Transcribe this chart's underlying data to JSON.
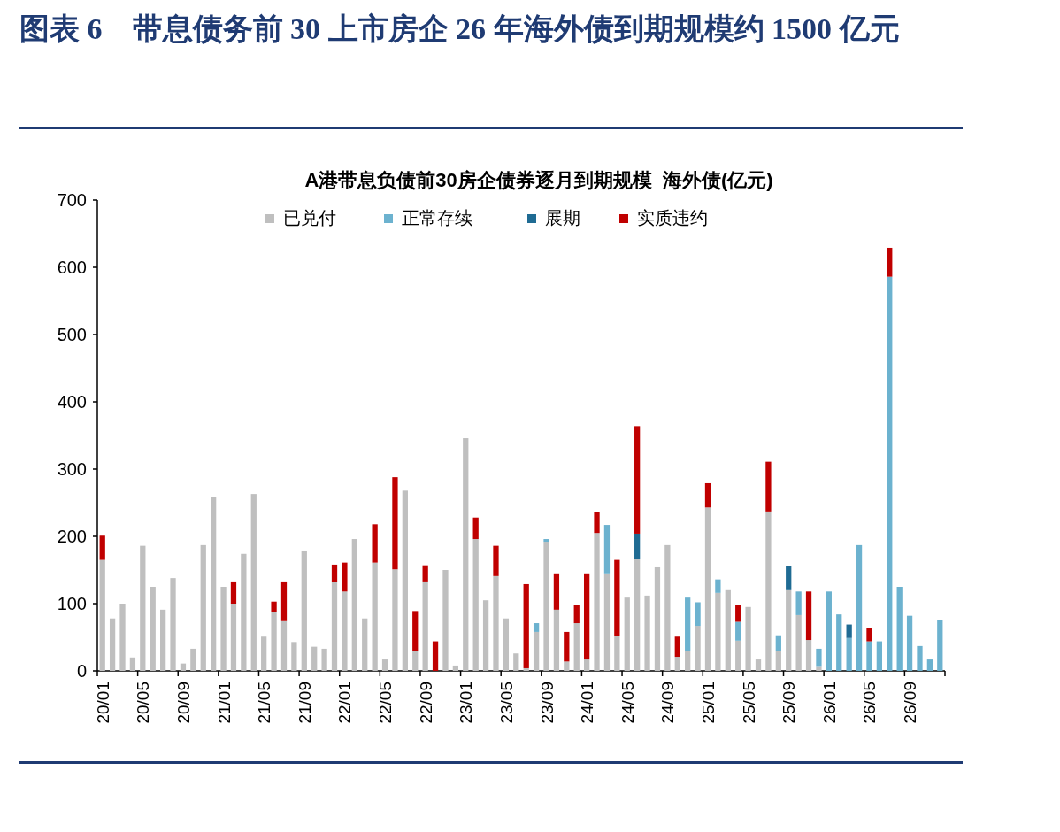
{
  "chart_data": {
    "type": "bar",
    "stacked": true,
    "title": "图表 6　带息债务前 30 上市房企 26 年海外债到期规模约 1500 亿元",
    "subtitle": "A港带息负债前30房企债券逐月到期规模_海外债(亿元)",
    "categories": [
      "20/01",
      null,
      null,
      null,
      "20/05",
      null,
      null,
      null,
      "20/09",
      null,
      null,
      null,
      "21/01",
      null,
      null,
      null,
      "21/05",
      null,
      null,
      null,
      "21/09",
      null,
      null,
      null,
      "22/01",
      null,
      null,
      null,
      "22/05",
      null,
      null,
      null,
      "22/09",
      null,
      null,
      null,
      "23/01",
      null,
      null,
      null,
      "23/05",
      null,
      null,
      null,
      "23/09",
      null,
      null,
      null,
      "24/01",
      null,
      null,
      null,
      "24/05",
      null,
      null,
      null,
      "24/09",
      null,
      null,
      null,
      "25/01",
      null,
      null,
      null,
      "25/05",
      null,
      null,
      null,
      "25/09",
      null,
      null,
      null,
      "26/01",
      null,
      null,
      null,
      "26/05",
      null,
      null,
      null,
      "26/09",
      null,
      null,
      null
    ],
    "series": [
      {
        "name": "已兑付",
        "color": "#bfbfbf",
        "values": [
          165,
          78,
          100,
          20,
          186,
          125,
          91,
          138,
          11,
          33,
          187,
          259,
          125,
          100,
          174,
          263,
          51,
          88,
          74,
          43,
          179,
          36,
          33,
          132,
          118,
          196,
          78,
          161,
          17,
          151,
          268,
          29,
          133,
          null,
          150,
          8,
          346,
          196,
          105,
          141,
          78,
          26,
          4,
          58,
          192,
          91,
          14,
          71,
          17,
          205,
          145,
          52,
          109,
          167,
          112,
          154,
          187,
          21,
          29,
          67,
          243,
          116,
          120,
          45,
          95,
          17,
          237,
          30,
          120,
          83,
          46,
          6,
          null,
          null,
          null,
          null,
          null,
          null,
          null,
          null,
          null,
          null,
          null,
          null
        ]
      },
      {
        "name": "正常存续",
        "color": "#6cb2cf",
        "values": [
          null,
          null,
          null,
          null,
          null,
          null,
          null,
          null,
          null,
          null,
          null,
          null,
          null,
          null,
          null,
          null,
          null,
          null,
          null,
          null,
          null,
          null,
          null,
          null,
          null,
          null,
          null,
          null,
          null,
          null,
          null,
          null,
          null,
          null,
          null,
          null,
          null,
          null,
          null,
          null,
          null,
          null,
          null,
          13,
          4,
          null,
          null,
          null,
          null,
          null,
          72,
          null,
          null,
          null,
          null,
          null,
          null,
          null,
          80,
          35,
          null,
          20,
          null,
          28,
          null,
          null,
          null,
          23,
          null,
          35,
          null,
          27,
          118,
          84,
          49,
          187,
          44,
          44,
          586,
          125,
          82,
          37,
          17,
          75
        ]
      },
      {
        "name": "展期",
        "color": "#1f6b93",
        "values": [
          null,
          null,
          null,
          null,
          null,
          null,
          null,
          null,
          null,
          null,
          null,
          null,
          null,
          null,
          null,
          null,
          null,
          null,
          null,
          null,
          null,
          null,
          null,
          null,
          null,
          null,
          null,
          null,
          null,
          null,
          null,
          null,
          null,
          null,
          null,
          null,
          null,
          null,
          null,
          null,
          null,
          null,
          null,
          null,
          null,
          null,
          null,
          null,
          null,
          null,
          null,
          null,
          null,
          37,
          null,
          null,
          null,
          null,
          null,
          null,
          null,
          null,
          null,
          null,
          null,
          null,
          null,
          null,
          36,
          null,
          null,
          null,
          null,
          null,
          20,
          null,
          null,
          null,
          null,
          null,
          null,
          null,
          null,
          null
        ]
      },
      {
        "name": "实质违约",
        "color": "#c00000",
        "values": [
          36,
          null,
          null,
          null,
          null,
          null,
          null,
          null,
          null,
          null,
          null,
          null,
          null,
          33,
          null,
          null,
          null,
          15,
          59,
          null,
          null,
          null,
          null,
          26,
          43,
          null,
          null,
          57,
          null,
          137,
          null,
          60,
          24,
          44,
          null,
          null,
          null,
          32,
          null,
          45,
          null,
          null,
          125,
          null,
          null,
          54,
          44,
          27,
          128,
          31,
          null,
          113,
          null,
          160,
          null,
          null,
          null,
          30,
          null,
          null,
          36,
          null,
          null,
          25,
          null,
          null,
          74,
          null,
          null,
          null,
          72,
          null,
          null,
          null,
          null,
          null,
          20,
          null,
          43,
          null,
          null,
          null,
          null,
          null
        ]
      }
    ],
    "ylim": [
      0,
      700
    ],
    "yticks": [
      0,
      100,
      200,
      300,
      400,
      500,
      600,
      700
    ],
    "legend": "top",
    "grid": false
  }
}
